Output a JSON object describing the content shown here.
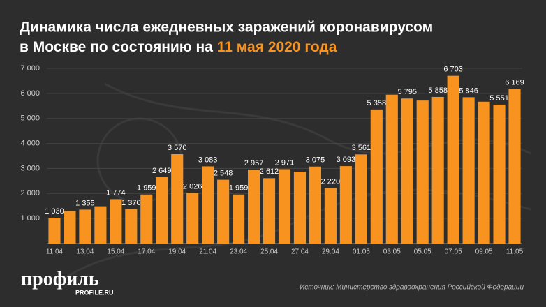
{
  "chart_data": {
    "type": "bar",
    "title_line1": "Динамика числа ежедневных заражений коронавирусом",
    "title_line2": "в Москве по состоянию на",
    "title_highlight": "11 мая 2020 года",
    "categories": [
      "11.04",
      null,
      "13.04",
      null,
      "15.04",
      null,
      "17.04",
      null,
      "19.04",
      null,
      "21.04",
      null,
      "23.04",
      null,
      "25.04",
      null,
      "27.04",
      null,
      "29.04",
      null,
      "01.05",
      null,
      "03.05",
      null,
      "05.05",
      null,
      "07.05",
      null,
      "09.05",
      null,
      "11.05"
    ],
    "values": [
      1030,
      1300,
      1355,
      1489,
      1774,
      1370,
      1959,
      2649,
      3570,
      2026,
      3083,
      2548,
      1959,
      2957,
      2612,
      2971,
      2871,
      3075,
      2220,
      3093,
      3561,
      5358,
      5948,
      5795,
      5714,
      5858,
      6703,
      5846,
      5667,
      5551,
      6169
    ],
    "value_labels": [
      "1 030",
      null,
      "1 355",
      null,
      "1 774",
      "1 370",
      "1 959",
      "2 649",
      "3 570",
      "2 026",
      "3 083",
      "2 548",
      "1 959",
      "2 957",
      "2 612",
      "2 971",
      null,
      "3 075",
      "2 220",
      "3 093",
      "3 561",
      "5 358",
      null,
      "5 795",
      null,
      "5 858",
      "6 703",
      "5 846",
      null,
      "5 551",
      "6 169"
    ],
    "color": "#f7931e",
    "ylim": [
      0,
      7000
    ],
    "yticks": [
      {
        "value": 1000,
        "label": "1 000"
      },
      {
        "value": 2000,
        "label": "2 000"
      },
      {
        "value": 3000,
        "label": "3 000"
      },
      {
        "value": 4000,
        "label": "4 000"
      },
      {
        "value": 5000,
        "label": "5 000"
      },
      {
        "value": 6000,
        "label": "6 000"
      },
      {
        "value": 7000,
        "label": "7 000"
      }
    ],
    "grid": true,
    "source": "Источник: Министерство здравоохранения Российской Федерации",
    "logo": "профиль",
    "logo_site": "PROFILE.RU"
  }
}
